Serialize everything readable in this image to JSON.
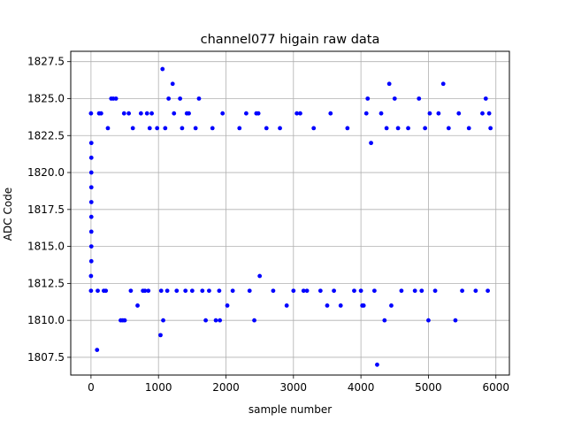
{
  "chart_data": {
    "type": "scatter",
    "title": "channel077 higain raw data",
    "xlabel": "sample number",
    "ylabel": "ADC Code",
    "xlim": [
      -300,
      6200
    ],
    "ylim": [
      1806.3,
      1828.2
    ],
    "xticks": [
      0,
      1000,
      2000,
      3000,
      4000,
      5000,
      6000
    ],
    "xtick_labels": [
      "0",
      "1000",
      "2000",
      "3000",
      "4000",
      "5000",
      "6000"
    ],
    "yticks": [
      1807.5,
      1810.0,
      1812.5,
      1815.0,
      1817.5,
      1820.0,
      1822.5,
      1825.0,
      1827.5
    ],
    "ytick_labels": [
      "1807.5",
      "1810.0",
      "1812.5",
      "1815.0",
      "1817.5",
      "1820.0",
      "1822.5",
      "1825.0",
      "1827.5"
    ],
    "grid": true,
    "marker_color": "#0000ff",
    "series": [
      {
        "points": [
          [
            0,
            1824
          ],
          [
            0,
            1812
          ],
          [
            0,
            1813
          ],
          [
            5,
            1822
          ],
          [
            5,
            1821
          ],
          [
            5,
            1820
          ],
          [
            5,
            1819
          ],
          [
            5,
            1818
          ],
          [
            5,
            1817
          ],
          [
            5,
            1816
          ],
          [
            5,
            1815
          ],
          [
            5,
            1814
          ],
          [
            90,
            1808
          ],
          [
            100,
            1812
          ],
          [
            120,
            1824
          ],
          [
            150,
            1824
          ],
          [
            190,
            1812
          ],
          [
            220,
            1812
          ],
          [
            250,
            1823
          ],
          [
            300,
            1825
          ],
          [
            330,
            1825
          ],
          [
            370,
            1825
          ],
          [
            440,
            1810
          ],
          [
            470,
            1810
          ],
          [
            490,
            1824
          ],
          [
            500,
            1810
          ],
          [
            560,
            1824
          ],
          [
            590,
            1812
          ],
          [
            620,
            1823
          ],
          [
            690,
            1811
          ],
          [
            740,
            1824
          ],
          [
            770,
            1812
          ],
          [
            800,
            1812
          ],
          [
            830,
            1824
          ],
          [
            850,
            1812
          ],
          [
            870,
            1823
          ],
          [
            900,
            1824
          ],
          [
            980,
            1823
          ],
          [
            1030,
            1809
          ],
          [
            1040,
            1812
          ],
          [
            1060,
            1827
          ],
          [
            1070,
            1810
          ],
          [
            1100,
            1823
          ],
          [
            1130,
            1812
          ],
          [
            1150,
            1825
          ],
          [
            1210,
            1826
          ],
          [
            1230,
            1824
          ],
          [
            1270,
            1812
          ],
          [
            1320,
            1825
          ],
          [
            1350,
            1823
          ],
          [
            1400,
            1812
          ],
          [
            1420,
            1824
          ],
          [
            1450,
            1824
          ],
          [
            1500,
            1812
          ],
          [
            1550,
            1823
          ],
          [
            1600,
            1825
          ],
          [
            1650,
            1812
          ],
          [
            1700,
            1810
          ],
          [
            1750,
            1812
          ],
          [
            1800,
            1823
          ],
          [
            1850,
            1810
          ],
          [
            1900,
            1812
          ],
          [
            1910,
            1810
          ],
          [
            1950,
            1824
          ],
          [
            2020,
            1811
          ],
          [
            2100,
            1812
          ],
          [
            2200,
            1823
          ],
          [
            2300,
            1824
          ],
          [
            2350,
            1812
          ],
          [
            2420,
            1810
          ],
          [
            2450,
            1824
          ],
          [
            2480,
            1824
          ],
          [
            2500,
            1813
          ],
          [
            2600,
            1823
          ],
          [
            2700,
            1812
          ],
          [
            2800,
            1823
          ],
          [
            2900,
            1811
          ],
          [
            3000,
            1812
          ],
          [
            3050,
            1824
          ],
          [
            3100,
            1824
          ],
          [
            3150,
            1812
          ],
          [
            3200,
            1812
          ],
          [
            3300,
            1823
          ],
          [
            3400,
            1812
          ],
          [
            3500,
            1811
          ],
          [
            3550,
            1824
          ],
          [
            3600,
            1812
          ],
          [
            3700,
            1811
          ],
          [
            3800,
            1823
          ],
          [
            3900,
            1812
          ],
          [
            4000,
            1812
          ],
          [
            4020,
            1811
          ],
          [
            4040,
            1811
          ],
          [
            4080,
            1824
          ],
          [
            4100,
            1825
          ],
          [
            4150,
            1822
          ],
          [
            4200,
            1812
          ],
          [
            4240,
            1807
          ],
          [
            4300,
            1824
          ],
          [
            4350,
            1810
          ],
          [
            4380,
            1823
          ],
          [
            4420,
            1826
          ],
          [
            4450,
            1811
          ],
          [
            4500,
            1825
          ],
          [
            4550,
            1823
          ],
          [
            4600,
            1812
          ],
          [
            4700,
            1823
          ],
          [
            4800,
            1812
          ],
          [
            4860,
            1825
          ],
          [
            4900,
            1812
          ],
          [
            4950,
            1823
          ],
          [
            5000,
            1810
          ],
          [
            5020,
            1824
          ],
          [
            5100,
            1812
          ],
          [
            5150,
            1824
          ],
          [
            5220,
            1826
          ],
          [
            5300,
            1823
          ],
          [
            5400,
            1810
          ],
          [
            5450,
            1824
          ],
          [
            5500,
            1812
          ],
          [
            5600,
            1823
          ],
          [
            5700,
            1812
          ],
          [
            5800,
            1824
          ],
          [
            5850,
            1825
          ],
          [
            5880,
            1812
          ],
          [
            5900,
            1824
          ],
          [
            5920,
            1823
          ]
        ]
      }
    ]
  }
}
